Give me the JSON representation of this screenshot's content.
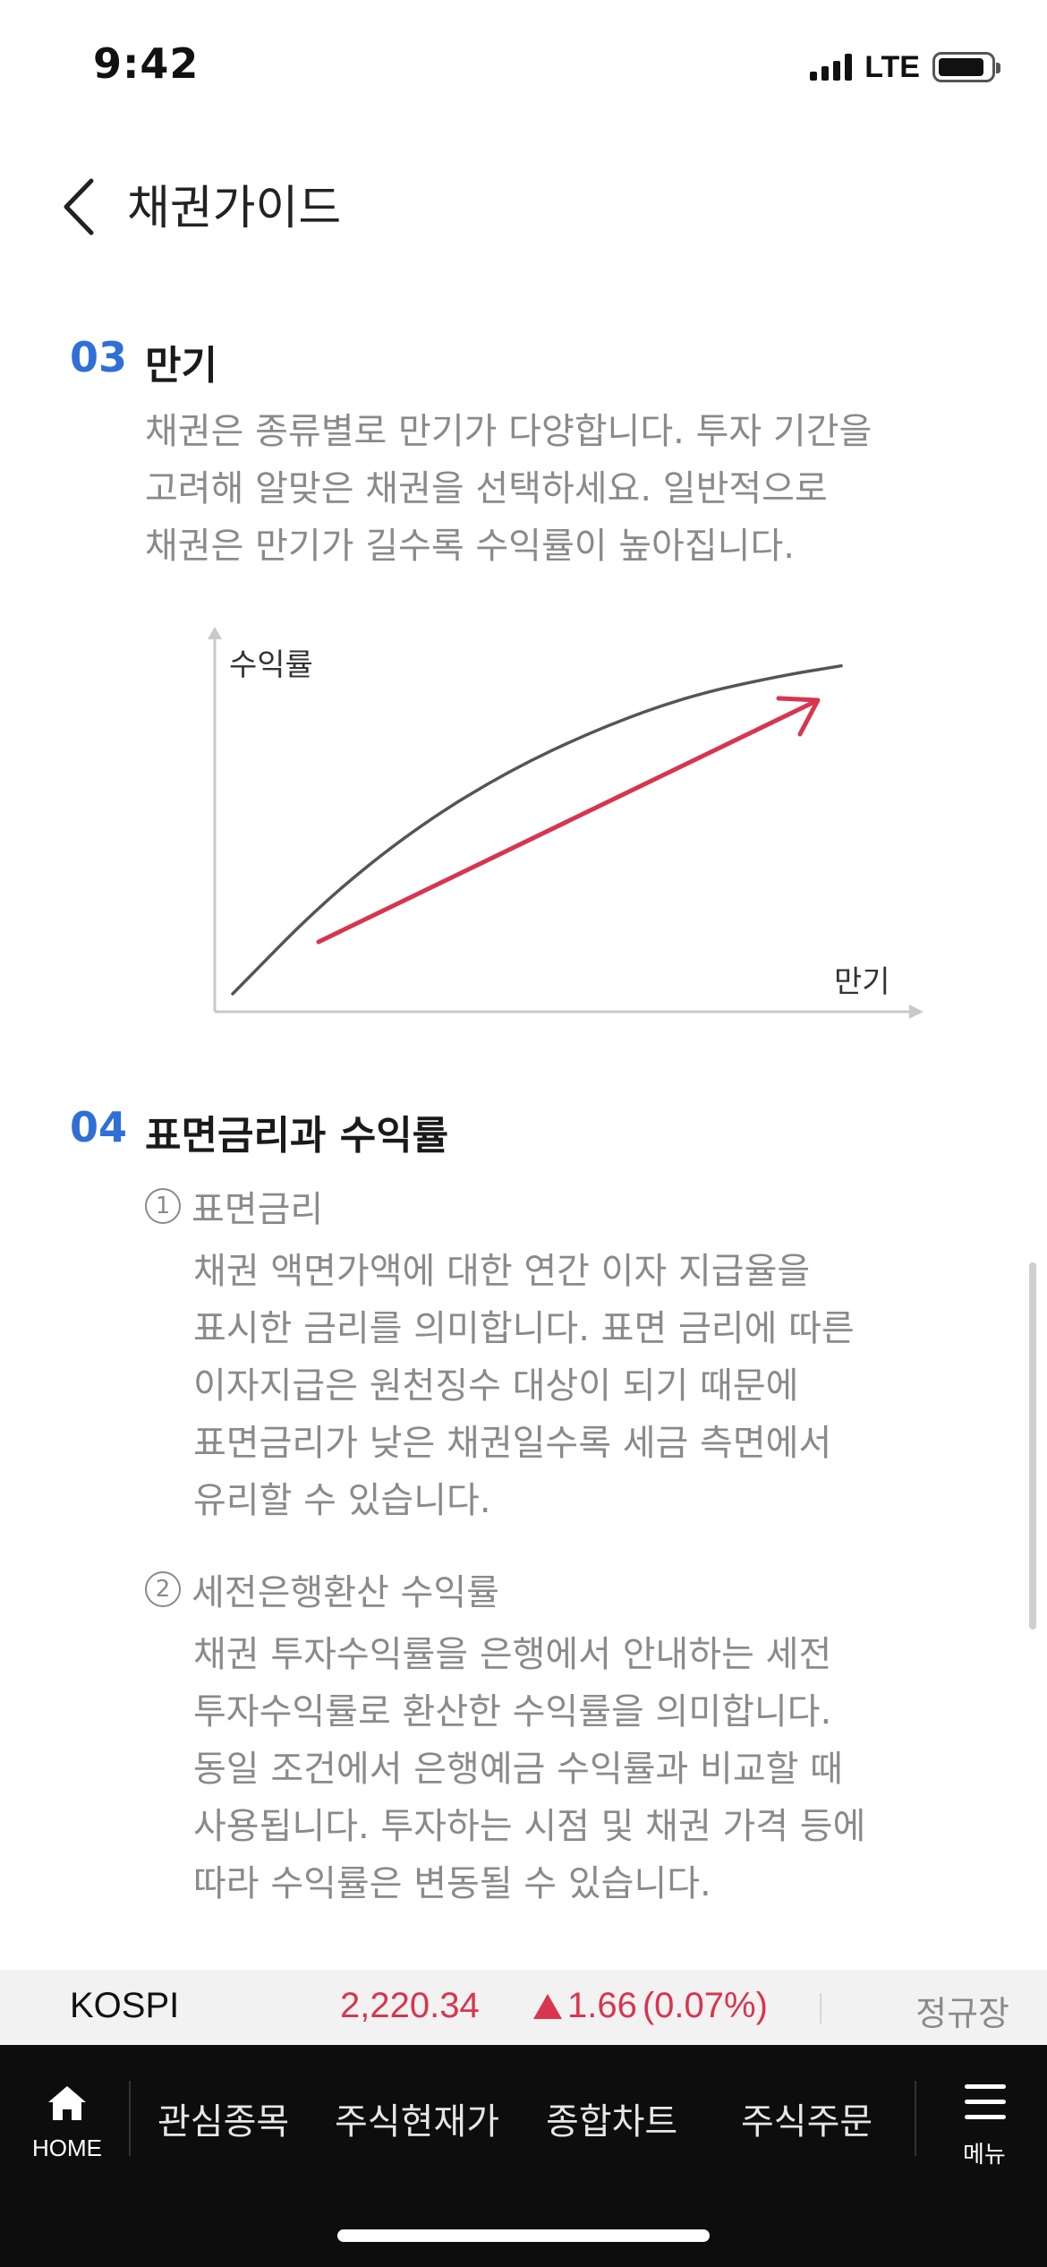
{
  "status": {
    "time": "9:42",
    "network": "LTE"
  },
  "header": {
    "title": "채권가이드"
  },
  "section3": {
    "number": "03",
    "title": "만기",
    "lines": [
      "채권은 종류별로 만기가 다양합니다. 투자 기간을",
      "고려해 알맞은 채권을 선택하세요. 일반적으로",
      "채권은 만기가 길수록 수익률이 높아집니다."
    ]
  },
  "chart_data": {
    "type": "line",
    "ylabel": "수익률",
    "xlabel": "만기",
    "series": [
      {
        "points": [
          [
            0,
            0
          ],
          [
            0.15,
            0.28
          ],
          [
            0.3,
            0.5
          ],
          [
            0.45,
            0.67
          ],
          [
            0.6,
            0.8
          ],
          [
            0.75,
            0.9
          ],
          [
            0.9,
            0.96
          ],
          [
            1.0,
            0.99
          ]
        ]
      }
    ],
    "colors": {
      "curve": "#555555",
      "arrow": "#d8354f",
      "axis": "#c9c9c9"
    },
    "xlim": [
      0,
      1
    ],
    "ylim": [
      0,
      1
    ],
    "grid": false
  },
  "section4": {
    "number": "04",
    "title": "표면금리과 수익률",
    "items": [
      {
        "marker": "1",
        "title": "표면금리",
        "lines": [
          "채권 액면가액에 대한 연간 이자 지급율을",
          "표시한 금리를 의미합니다. 표면 금리에 따른",
          "이자지급은 원천징수 대상이 되기 때문에",
          "표면금리가 낮은 채권일수록 세금 측면에서",
          "유리할 수 있습니다."
        ]
      },
      {
        "marker": "2",
        "title": "세전은행환산 수익률",
        "lines": [
          "채권 투자수익률을 은행에서 안내하는 세전",
          "투자수익률로 환산한 수익률을 의미합니다.",
          "동일 조건에서 은행예금 수익률과 비교할 때",
          "사용됩니다. 투자하는 시점 및 채권 가격 등에",
          "따라 수익률은 변동될 수 있습니다."
        ]
      }
    ]
  },
  "ticker": {
    "name": "KOSPI",
    "value": "2,220.34",
    "change": "1.66",
    "change_pct": "(0.07%)",
    "session": "정규장",
    "up_color": "#d8354f"
  },
  "nav": {
    "home_label": "HOME",
    "items": [
      "관심종목",
      "주식현재가",
      "종합차트",
      "주식주문"
    ],
    "menu_label": "메뉴"
  }
}
